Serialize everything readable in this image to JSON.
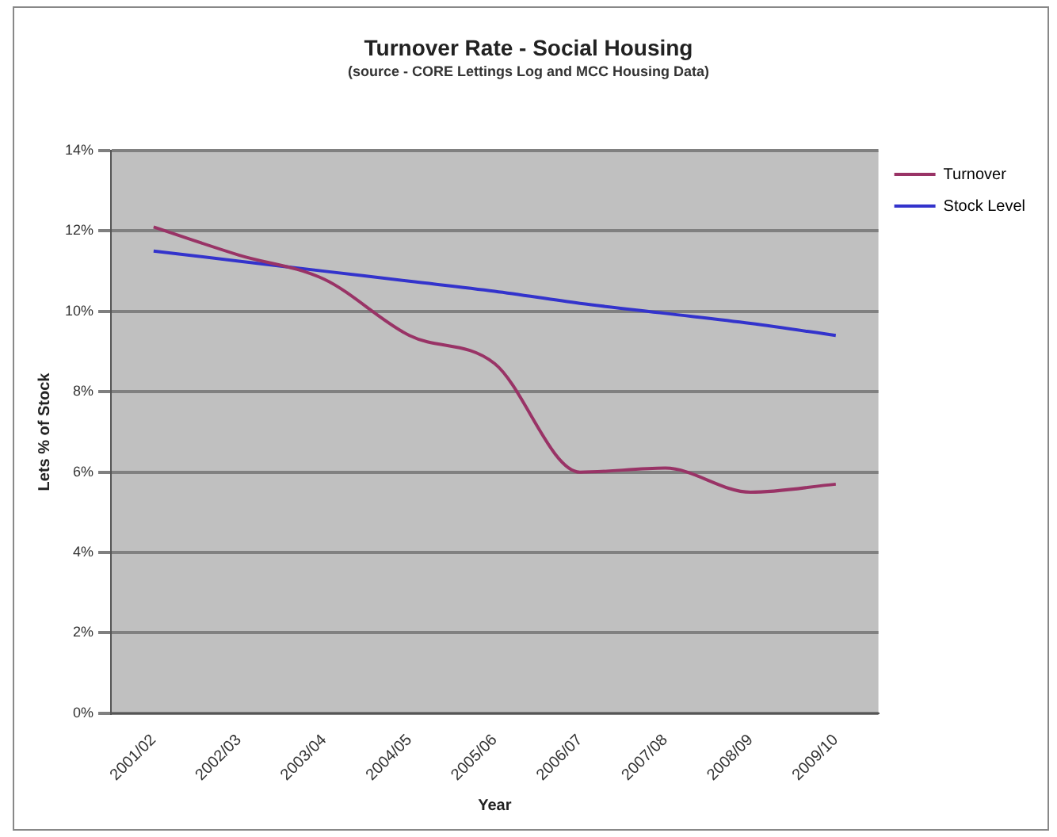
{
  "chart_data": {
    "type": "line",
    "title": "Turnover Rate - Social Housing",
    "subtitle": "(source - CORE Lettings Log and MCC Housing Data)",
    "xlabel": "Year",
    "ylabel": "Lets % of Stock",
    "categories": [
      "2001/02",
      "2002/03",
      "2003/04",
      "2004/05",
      "2005/06",
      "2006/07",
      "2007/08",
      "2008/09",
      "2009/10"
    ],
    "series": [
      {
        "name": "Turnover",
        "color": "#993366",
        "values": [
          12.1,
          11.4,
          10.8,
          9.4,
          8.7,
          6.0,
          6.1,
          5.5,
          5.7
        ]
      },
      {
        "name": "Stock Level",
        "color": "#3333cc",
        "values": [
          11.5,
          11.25,
          11.0,
          10.75,
          10.5,
          10.2,
          9.95,
          9.7,
          9.4
        ]
      }
    ],
    "ylim": [
      0,
      14
    ],
    "yticks": [
      {
        "value": 0,
        "label": "0%"
      },
      {
        "value": 2,
        "label": "2%"
      },
      {
        "value": 4,
        "label": "4%"
      },
      {
        "value": 6,
        "label": "6%"
      },
      {
        "value": 8,
        "label": "8%"
      },
      {
        "value": 10,
        "label": "10%"
      },
      {
        "value": 12,
        "label": "12%"
      },
      {
        "value": 14,
        "label": "14%"
      }
    ],
    "grid": "y",
    "legend": "top right",
    "marker": "none",
    "line_style": "solid"
  }
}
